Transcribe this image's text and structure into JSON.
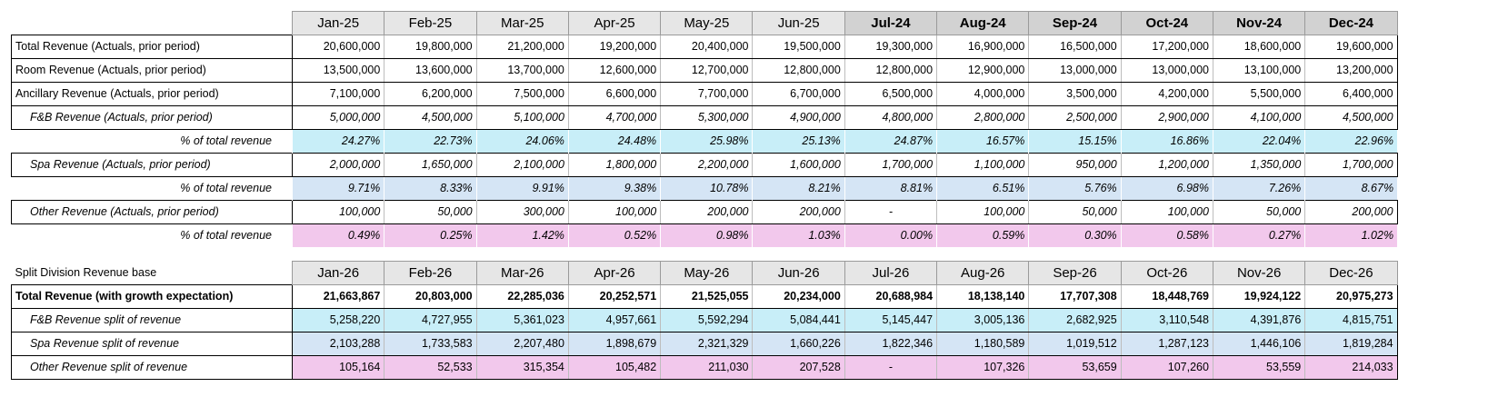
{
  "table1": {
    "months": [
      {
        "label": "Jan-25",
        "dark": false
      },
      {
        "label": "Feb-25",
        "dark": false
      },
      {
        "label": "Mar-25",
        "dark": false
      },
      {
        "label": "Apr-25",
        "dark": false
      },
      {
        "label": "May-25",
        "dark": false
      },
      {
        "label": "Jun-25",
        "dark": false
      },
      {
        "label": "Jul-24",
        "dark": true
      },
      {
        "label": "Aug-24",
        "dark": true
      },
      {
        "label": "Sep-24",
        "dark": true
      },
      {
        "label": "Oct-24",
        "dark": true
      },
      {
        "label": "Nov-24",
        "dark": true
      },
      {
        "label": "Dec-24",
        "dark": true
      }
    ],
    "rows": [
      {
        "label": "Total Revenue (Actuals, prior period)",
        "kind": "plain",
        "values": [
          "20,600,000",
          "19,800,000",
          "21,200,000",
          "19,200,000",
          "20,400,000",
          "19,500,000",
          "19,300,000",
          "16,900,000",
          "16,500,000",
          "17,200,000",
          "18,600,000",
          "19,600,000"
        ]
      },
      {
        "label": "Room Revenue (Actuals, prior period)",
        "kind": "plain",
        "values": [
          "13,500,000",
          "13,600,000",
          "13,700,000",
          "12,600,000",
          "12,700,000",
          "12,800,000",
          "12,800,000",
          "12,900,000",
          "13,000,000",
          "13,000,000",
          "13,100,000",
          "13,200,000"
        ]
      },
      {
        "label": "Ancillary Revenue (Actuals, prior period)",
        "kind": "plain",
        "values": [
          "7,100,000",
          "6,200,000",
          "7,500,000",
          "6,600,000",
          "7,700,000",
          "6,700,000",
          "6,500,000",
          "4,000,000",
          "3,500,000",
          "4,200,000",
          "5,500,000",
          "6,400,000"
        ]
      },
      {
        "label": "F&B Revenue (Actuals, prior period)",
        "kind": "sub",
        "values": [
          "5,000,000",
          "4,500,000",
          "5,100,000",
          "4,700,000",
          "5,300,000",
          "4,900,000",
          "4,800,000",
          "2,800,000",
          "2,500,000",
          "2,900,000",
          "4,100,000",
          "4,500,000"
        ]
      },
      {
        "label": "% of total revenue",
        "kind": "pct",
        "color": "cyan",
        "values": [
          "24.27%",
          "22.73%",
          "24.06%",
          "24.48%",
          "25.98%",
          "25.13%",
          "24.87%",
          "16.57%",
          "15.15%",
          "16.86%",
          "22.04%",
          "22.96%"
        ]
      },
      {
        "label": "Spa Revenue (Actuals, prior period)",
        "kind": "sub",
        "values": [
          "2,000,000",
          "1,650,000",
          "2,100,000",
          "1,800,000",
          "2,200,000",
          "1,600,000",
          "1,700,000",
          "1,100,000",
          "950,000",
          "1,200,000",
          "1,350,000",
          "1,700,000"
        ]
      },
      {
        "label": "% of total revenue",
        "kind": "pct",
        "color": "blue",
        "values": [
          "9.71%",
          "8.33%",
          "9.91%",
          "9.38%",
          "10.78%",
          "8.21%",
          "8.81%",
          "6.51%",
          "5.76%",
          "6.98%",
          "7.26%",
          "8.67%"
        ]
      },
      {
        "label": "Other Revenue (Actuals, prior period)",
        "kind": "sub",
        "values": [
          "100,000",
          "50,000",
          "300,000",
          "100,000",
          "200,000",
          "200,000",
          "-",
          "100,000",
          "50,000",
          "100,000",
          "50,000",
          "200,000"
        ]
      },
      {
        "label": "% of total revenue",
        "kind": "pct",
        "color": "pink",
        "values": [
          "0.49%",
          "0.25%",
          "1.42%",
          "0.52%",
          "0.98%",
          "1.03%",
          "0.00%",
          "0.59%",
          "0.30%",
          "0.58%",
          "0.27%",
          "1.02%"
        ]
      }
    ]
  },
  "table2": {
    "title": "Split Division Revenue base",
    "months": [
      {
        "label": "Jan-26",
        "dark": false
      },
      {
        "label": "Feb-26",
        "dark": false
      },
      {
        "label": "Mar-26",
        "dark": false
      },
      {
        "label": "Apr-26",
        "dark": false
      },
      {
        "label": "May-26",
        "dark": false
      },
      {
        "label": "Jun-26",
        "dark": false
      },
      {
        "label": "Jul-26",
        "dark": false
      },
      {
        "label": "Aug-26",
        "dark": false
      },
      {
        "label": "Sep-26",
        "dark": false
      },
      {
        "label": "Oct-26",
        "dark": false
      },
      {
        "label": "Nov-26",
        "dark": false
      },
      {
        "label": "Dec-26",
        "dark": false
      }
    ],
    "rows": [
      {
        "label": "Total Revenue (with growth expectation)",
        "kind": "bold",
        "values": [
          "21,663,867",
          "20,803,000",
          "22,285,036",
          "20,252,571",
          "21,525,055",
          "20,234,000",
          "20,688,984",
          "18,138,140",
          "17,707,308",
          "18,448,769",
          "19,924,122",
          "20,975,273"
        ]
      },
      {
        "label": "F&B Revenue split of revenue",
        "kind": "split",
        "color": "cyan",
        "values": [
          "5,258,220",
          "4,727,955",
          "5,361,023",
          "4,957,661",
          "5,592,294",
          "5,084,441",
          "5,145,447",
          "3,005,136",
          "2,682,925",
          "3,110,548",
          "4,391,876",
          "4,815,751"
        ]
      },
      {
        "label": "Spa Revenue split of revenue",
        "kind": "split",
        "color": "blue",
        "values": [
          "2,103,288",
          "1,733,583",
          "2,207,480",
          "1,898,679",
          "2,321,329",
          "1,660,226",
          "1,822,346",
          "1,180,589",
          "1,019,512",
          "1,287,123",
          "1,446,106",
          "1,819,284"
        ]
      },
      {
        "label": "Other Revenue split of revenue",
        "kind": "split",
        "color": "pink",
        "values": [
          "105,164",
          "52,533",
          "315,354",
          "105,482",
          "211,030",
          "207,528",
          "-",
          "107,326",
          "53,659",
          "107,260",
          "53,559",
          "214,033"
        ]
      }
    ]
  }
}
